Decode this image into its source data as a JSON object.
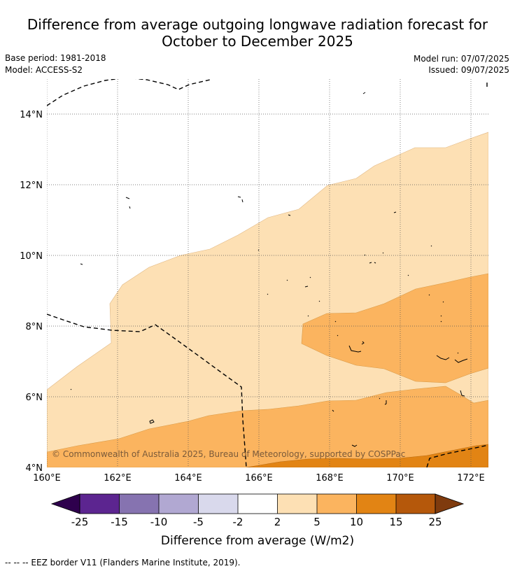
{
  "title_line1": "Difference from average outgoing longwave radiation forecast for",
  "title_line2": "October to December 2025",
  "base_period": "Base period: 1981-2018",
  "model": "Model: ACCESS-S2",
  "model_run": "Model run: 07/07/2025",
  "issued": "Issued: 09/07/2025",
  "copyright": "© Commonwealth of Australia 2025, Bureau of Meteorology, supported by COSPPac",
  "colorbar_label": "Difference from average (W/m2)",
  "footer": "--  --  -- EEZ border V11 (Flanders Marine Institute, 2019).",
  "map_data": {
    "type": "map",
    "x_ticks": [
      "160°E",
      "162°E",
      "164°E",
      "166°E",
      "168°E",
      "170°E",
      "172°E"
    ],
    "y_ticks": [
      "14°N",
      "12°N",
      "10°N",
      "8°N",
      "6°N",
      "4°N"
    ],
    "lon_range": [
      160,
      172.5
    ],
    "lat_range": [
      4,
      15
    ],
    "grid": true,
    "colorbar": {
      "ticks": [
        "-25",
        "-15",
        "-10",
        "-5",
        "-2",
        "2",
        "5",
        "10",
        "15",
        "25"
      ],
      "colors": [
        "#2e004d",
        "#5c2590",
        "#8673b0",
        "#b1a8d2",
        "#d9d9ec",
        "#ffffff",
        "#fde0b4",
        "#fbb45f",
        "#e28414",
        "#b5580b",
        "#7f3b0e"
      ],
      "extend": "both"
    }
  }
}
